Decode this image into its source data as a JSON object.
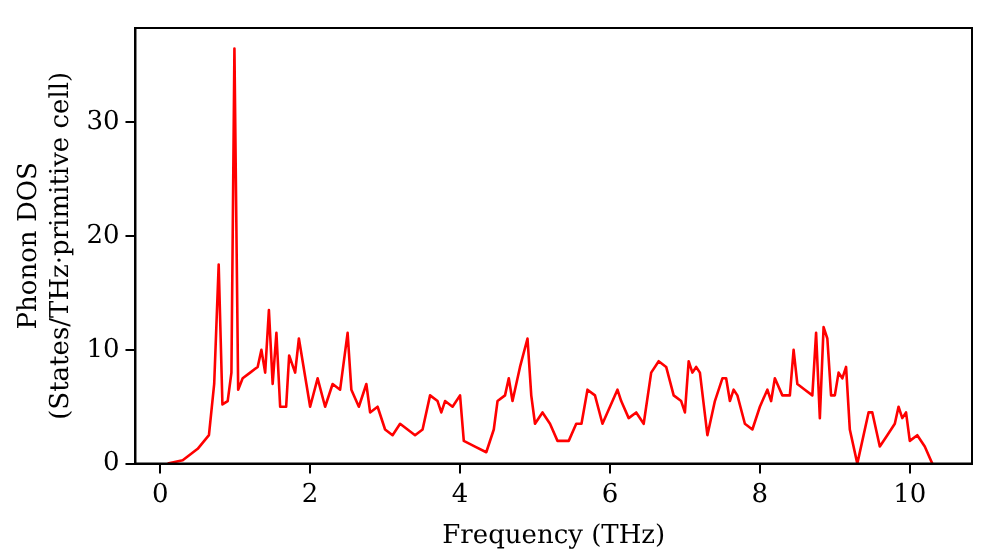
{
  "chart_data": {
    "type": "line",
    "xlabel": "Frequency (THz)",
    "ylabel": "Phonon DOS\n(States/THz·primitive cell)",
    "xlim": [
      -0.33,
      10.83
    ],
    "xticks": [
      0,
      2,
      4,
      6,
      8,
      10
    ],
    "ylim": [
      0,
      38.3
    ],
    "yticks": [
      0,
      10,
      20,
      30
    ],
    "grid": false,
    "legend": false,
    "marker": "none",
    "line_style": "solid",
    "series": [
      {
        "color": "#ff0000",
        "x": [
          0.1,
          0.3,
          0.5,
          0.65,
          0.72,
          0.78,
          0.83,
          0.9,
          0.95,
          0.99,
          1.04,
          1.1,
          1.2,
          1.3,
          1.35,
          1.4,
          1.45,
          1.5,
          1.55,
          1.6,
          1.68,
          1.72,
          1.8,
          1.85,
          1.95,
          2.0,
          2.1,
          2.2,
          2.3,
          2.4,
          2.5,
          2.55,
          2.65,
          2.75,
          2.8,
          2.9,
          3.0,
          3.1,
          3.2,
          3.3,
          3.4,
          3.5,
          3.6,
          3.7,
          3.75,
          3.8,
          3.9,
          4.0,
          4.05,
          4.2,
          4.35,
          4.45,
          4.5,
          4.6,
          4.65,
          4.7,
          4.8,
          4.9,
          4.95,
          5.0,
          5.1,
          5.2,
          5.3,
          5.45,
          5.55,
          5.62,
          5.7,
          5.8,
          5.9,
          6.0,
          6.1,
          6.15,
          6.25,
          6.35,
          6.45,
          6.55,
          6.65,
          6.75,
          6.85,
          6.95,
          7.0,
          7.05,
          7.1,
          7.15,
          7.2,
          7.3,
          7.4,
          7.5,
          7.55,
          7.6,
          7.65,
          7.7,
          7.8,
          7.9,
          8.0,
          8.1,
          8.15,
          8.2,
          8.3,
          8.4,
          8.45,
          8.5,
          8.6,
          8.7,
          8.75,
          8.8,
          8.85,
          8.9,
          8.95,
          9.0,
          9.05,
          9.1,
          9.15,
          9.2,
          9.3,
          9.45,
          9.5,
          9.6,
          9.7,
          9.8,
          9.85,
          9.9,
          9.95,
          10.0,
          10.1,
          10.2,
          10.3
        ],
        "values": [
          0,
          0.3,
          1.3,
          2.5,
          7,
          17.5,
          5.2,
          5.5,
          8,
          36.5,
          6.5,
          7.5,
          8,
          8.5,
          10,
          8,
          13.5,
          7,
          11.5,
          5,
          5,
          9.5,
          8,
          11,
          7,
          5,
          7.5,
          5,
          7,
          6.5,
          11.5,
          6.5,
          5,
          7,
          4.5,
          5,
          3,
          2.5,
          3.5,
          3,
          2.5,
          3,
          6,
          5.5,
          4.5,
          5.5,
          5,
          6,
          2,
          1.5,
          1,
          3,
          5.5,
          6,
          7.5,
          5.5,
          8.5,
          11,
          6,
          3.5,
          4.5,
          3.5,
          2,
          2,
          3.5,
          3.5,
          6.5,
          6,
          3.5,
          5,
          6.5,
          5.5,
          4,
          4.5,
          3.5,
          8,
          9,
          8.5,
          6,
          5.5,
          4.5,
          9,
          8,
          8.5,
          8,
          2.5,
          5.5,
          7.5,
          7.5,
          5.5,
          6.5,
          6,
          3.5,
          3,
          5,
          6.5,
          5.5,
          7.5,
          6,
          6,
          10,
          7,
          6.5,
          6,
          11.5,
          4,
          12,
          11,
          6,
          6,
          8,
          7.5,
          8.5,
          3,
          0,
          4.5,
          4.5,
          1.5,
          2.5,
          3.5,
          5,
          4,
          4.5,
          2,
          2.5,
          1.5,
          0
        ]
      }
    ]
  }
}
